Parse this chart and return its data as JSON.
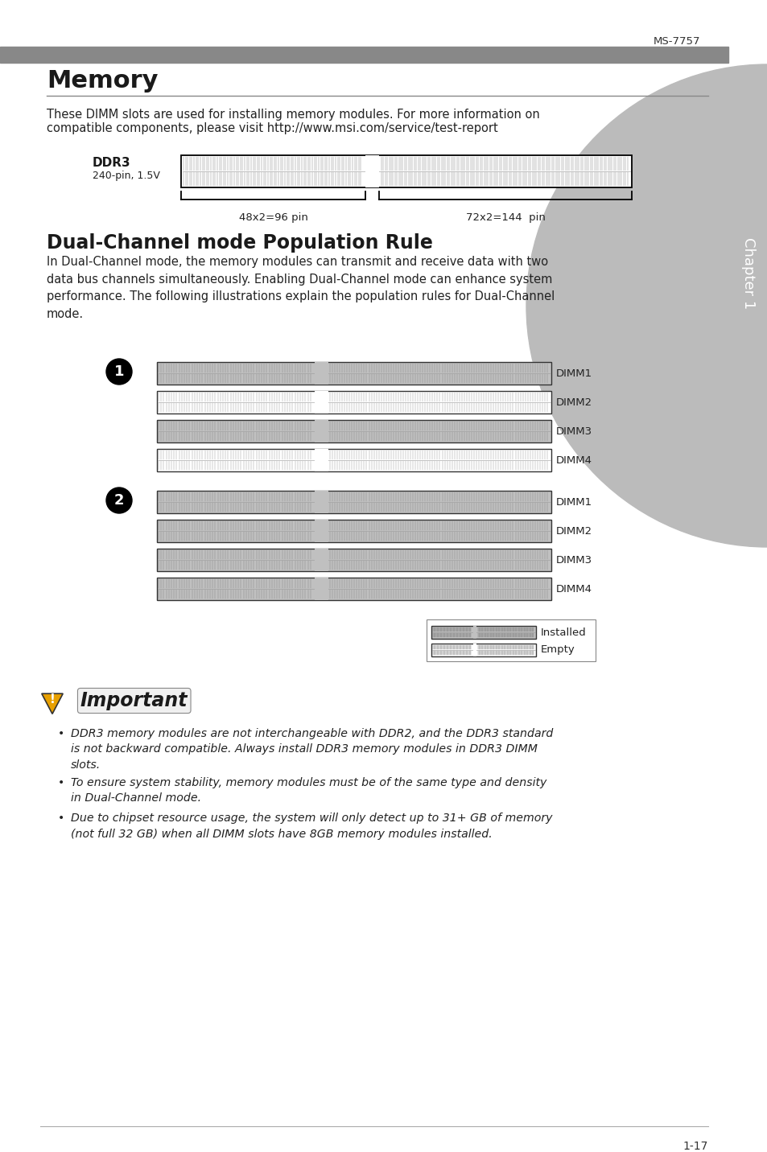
{
  "page_header": "MS-7757",
  "header_bar_color": "#888888",
  "section1_title": "Memory",
  "section1_body1": "These DIMM slots are used for installing memory modules. For more information on",
  "section1_body2": "compatible components, please visit http://www.msi.com/service/test-report",
  "ddr3_label": "DDR3",
  "ddr3_sublabel": "240-pin, 1.5V",
  "pin_label1": "48x2=96 pin",
  "pin_label2": "72x2=144  pin",
  "section2_title": "Dual-Channel mode Population Rule",
  "section2_body": "In Dual-Channel mode, the memory modules can transmit and receive data with two\ndata bus channels simultaneously. Enabling Dual-Channel mode can enhance system\nperformance. The following illustrations explain the population rules for Dual-Channel\nmode.",
  "dimm_labels": [
    "DIMM1",
    "DIMM2",
    "DIMM3",
    "DIMM4"
  ],
  "group1_installed": [
    true,
    false,
    true,
    false
  ],
  "group2_installed": [
    true,
    true,
    true,
    true
  ],
  "legend_installed": "Installed",
  "legend_empty": "Empty",
  "important_bullets": [
    "DDR3 memory modules are not interchangeable with DDR2, and the DDR3 standard\nis not backward compatible. Always install DDR3 memory modules in DDR3 DIMM\nslots.",
    "To ensure system stability, memory modules must be of the same type and density\nin Dual-Channel mode.",
    "Due to chipset resource usage, the system will only detect up to 31+ GB of memory\n(not full 32 GB) when all DIMM slots have 8GB memory modules installed."
  ],
  "page_footer": "1-17",
  "chapter_label": "Chapter 1",
  "sidebar_color": "#bbbbbb",
  "text_color": "#1a1a1a",
  "body_color": "#222222"
}
